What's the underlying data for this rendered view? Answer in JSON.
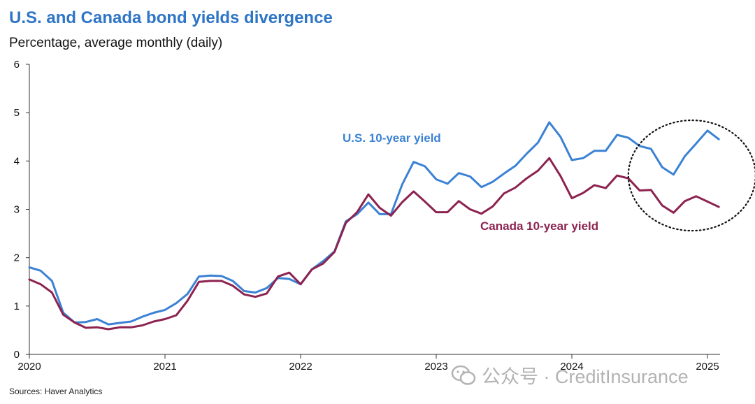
{
  "title": "U.S. and Canada bond yields divergence",
  "subtitle": "Percentage, average monthly (daily)",
  "source": "Sources: Haver Analytics",
  "watermark": "公众号 · CreditInsurance",
  "colors": {
    "title": "#2e75c6",
    "us": "#3b82d4",
    "canada": "#8c2350",
    "axis": "#333333"
  },
  "chart_data": {
    "type": "line",
    "title": "U.S. and Canada bond yields divergence",
    "subtitle": "Percentage, average monthly (daily)",
    "xlabel": "",
    "ylabel": "",
    "ylim": [
      0,
      6
    ],
    "yticks": [
      0,
      1,
      2,
      3,
      4,
      5,
      6
    ],
    "xticks": [
      "2020",
      "2021",
      "2022",
      "2023",
      "2024",
      "2025"
    ],
    "x_range": [
      "2020-01",
      "2025-02"
    ],
    "grid": false,
    "legend": "direct labels on lines",
    "annotation": "dotted circle highlighting the divergence since late 2024",
    "months": [
      "2020-01",
      "2020-02",
      "2020-03",
      "2020-04",
      "2020-05",
      "2020-06",
      "2020-07",
      "2020-08",
      "2020-09",
      "2020-10",
      "2020-11",
      "2020-12",
      "2021-01",
      "2021-02",
      "2021-03",
      "2021-04",
      "2021-05",
      "2021-06",
      "2021-07",
      "2021-08",
      "2021-09",
      "2021-10",
      "2021-11",
      "2021-12",
      "2022-01",
      "2022-02",
      "2022-03",
      "2022-04",
      "2022-05",
      "2022-06",
      "2022-07",
      "2022-08",
      "2022-09",
      "2022-10",
      "2022-11",
      "2022-12",
      "2023-01",
      "2023-02",
      "2023-03",
      "2023-04",
      "2023-05",
      "2023-06",
      "2023-07",
      "2023-08",
      "2023-09",
      "2023-10",
      "2023-11",
      "2023-12",
      "2024-01",
      "2024-02",
      "2024-03",
      "2024-04",
      "2024-05",
      "2024-06",
      "2024-07",
      "2024-08",
      "2024-09",
      "2024-10",
      "2024-11",
      "2024-12",
      "2025-01",
      "2025-02"
    ],
    "series": [
      {
        "name": "U.S. 10-year yield",
        "color": "#3b82d4",
        "values": [
          1.8,
          1.73,
          1.52,
          0.86,
          0.66,
          0.67,
          0.73,
          0.62,
          0.65,
          0.68,
          0.78,
          0.86,
          0.92,
          1.06,
          1.25,
          1.61,
          1.63,
          1.62,
          1.52,
          1.31,
          1.28,
          1.37,
          1.58,
          1.56,
          1.45,
          1.76,
          1.93,
          2.13,
          2.75,
          2.9,
          3.14,
          2.9,
          2.9,
          3.52,
          3.98,
          3.89,
          3.62,
          3.53,
          3.75,
          3.68,
          3.46,
          3.57,
          3.74,
          3.9,
          4.15,
          4.38,
          4.8,
          4.5,
          4.02,
          4.06,
          4.21,
          4.21,
          4.54,
          4.48,
          4.31,
          4.25,
          3.87,
          3.72,
          4.1,
          4.36,
          4.63,
          4.45
        ]
      },
      {
        "name": "Canada 10-year yield",
        "color": "#8c2350",
        "values": [
          1.55,
          1.45,
          1.28,
          0.82,
          0.66,
          0.55,
          0.56,
          0.52,
          0.56,
          0.56,
          0.6,
          0.68,
          0.73,
          0.81,
          1.11,
          1.5,
          1.52,
          1.52,
          1.42,
          1.24,
          1.19,
          1.26,
          1.61,
          1.69,
          1.45,
          1.76,
          1.88,
          2.12,
          2.72,
          2.94,
          3.31,
          3.03,
          2.87,
          3.15,
          3.37,
          3.16,
          2.94,
          2.94,
          3.17,
          3.0,
          2.91,
          3.06,
          3.33,
          3.45,
          3.64,
          3.8,
          4.06,
          3.69,
          3.23,
          3.34,
          3.5,
          3.44,
          3.7,
          3.64,
          3.39,
          3.4,
          3.08,
          2.93,
          3.17,
          3.27,
          3.16,
          3.05
        ]
      }
    ]
  }
}
